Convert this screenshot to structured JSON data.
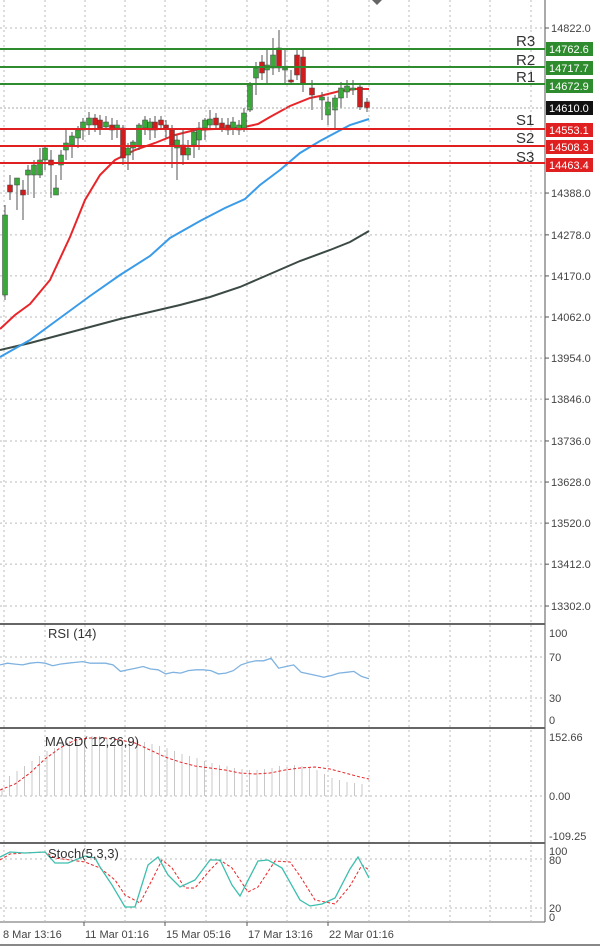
{
  "chart_data": [
    {
      "type": "candlestick",
      "title": "",
      "price_axis": {
        "ticks": [
          "14822.0",
          "14388.0",
          "14278.0",
          "14170.0",
          "14062.0",
          "13954.0",
          "13846.0",
          "13736.0",
          "13628.0",
          "13520.0",
          "13412.0",
          "13302.0"
        ],
        "range": [
          13302.0,
          14822.0
        ]
      },
      "current_price": "14610.0",
      "levels": [
        {
          "name": "R3",
          "value": "14762.6",
          "type": "resistance",
          "color": "#2e8b2e"
        },
        {
          "name": "R2",
          "value": "14717.7",
          "type": "resistance",
          "color": "#2e8b2e"
        },
        {
          "name": "R1",
          "value": "14672.9",
          "type": "resistance",
          "color": "#2e8b2e"
        },
        {
          "name": "S1",
          "value": "14553.1",
          "type": "support",
          "color": "#e02020"
        },
        {
          "name": "S2",
          "value": "14508.3",
          "type": "support",
          "color": "#e02020"
        },
        {
          "name": "S3",
          "value": "14463.4",
          "type": "support",
          "color": "#e02020"
        }
      ],
      "moving_averages": [
        {
          "name": "MA fast",
          "color": "#e8262a"
        },
        {
          "name": "MA medium",
          "color": "#3a9be8"
        },
        {
          "name": "MA slow",
          "color": "#3c4a44"
        }
      ],
      "x_ticks": [
        "8 Mar 13:16",
        "11 Mar 01:16",
        "15 Mar 05:16",
        "17 Mar 13:16",
        "22 Mar 01:16"
      ]
    },
    {
      "type": "line",
      "title": "RSI (14)",
      "y_ticks": [
        "100",
        "70",
        "30",
        "0"
      ],
      "ylim": [
        0,
        100
      ],
      "values_approx": [
        66,
        68,
        67,
        66,
        68,
        69,
        68,
        65,
        67,
        68,
        69,
        70,
        68,
        68,
        68,
        66,
        58,
        60,
        62,
        64,
        61,
        60,
        55,
        57,
        56,
        59,
        60,
        60,
        59,
        55,
        56,
        59,
        66,
        69,
        71,
        71,
        74,
        62,
        64,
        66,
        57,
        55,
        53,
        51,
        53,
        56,
        57,
        58,
        52,
        49
      ]
    },
    {
      "type": "bar",
      "title": "MACD( 12,26,9)",
      "y_ticks": [
        "152.66",
        "0.00",
        "-109.25"
      ],
      "ylim": [
        -109.25,
        152.66
      ],
      "signal_color": "#e8262a",
      "histogram_color": "#c8c8c8"
    },
    {
      "type": "line",
      "title": "Stoch(5,3,3)",
      "y_ticks": [
        "100",
        "80",
        "20",
        "0"
      ],
      "ylim": [
        0,
        100
      ],
      "main_color": "#3cbfae",
      "signal_color": "#e8262a"
    }
  ],
  "labels": {
    "rsi_title": "RSI (14)",
    "macd_title": "MACD( 12,26,9)",
    "stoch_title": "Stoch(5,3,3)",
    "price_ticks": [
      "14822.0",
      "14388.0",
      "14278.0",
      "14170.0",
      "14062.0",
      "13954.0",
      "13846.0",
      "13736.0",
      "13628.0",
      "13520.0",
      "13412.0",
      "13302.0"
    ],
    "rsi_ticks": [
      "100",
      "70",
      "30",
      "0"
    ],
    "macd_ticks": [
      "152.66",
      "0.00",
      "-109.25"
    ],
    "stoch_ticks": [
      "100",
      "80",
      "20",
      "0"
    ],
    "dates": [
      "8 Mar 13:16",
      "11 Mar 01:16",
      "15 Mar 05:16",
      "17 Mar 13:16",
      "22 Mar 01:16"
    ],
    "current_price": "14610.0",
    "levels": {
      "R3": {
        "name": "R3",
        "value": "14762.6"
      },
      "R2": {
        "name": "R2",
        "value": "14717.7"
      },
      "R1": {
        "name": "R1",
        "value": "14672.9"
      },
      "S1": {
        "name": "S1",
        "value": "14553.1"
      },
      "S2": {
        "name": "S2",
        "value": "14508.3"
      },
      "S3": {
        "name": "S3",
        "value": "14463.4"
      }
    }
  },
  "colors": {
    "bull": "#3aa83a",
    "bear": "#d01c1c",
    "resistance": "#2e8b2e",
    "support": "#e02020",
    "ma_fast": "#e8262a",
    "ma_mid": "#3a9be8",
    "ma_slow": "#3c4a44",
    "rsi": "#7fb2e0",
    "stoch_main": "#3cbfae",
    "stoch_signal": "#e8262a"
  }
}
